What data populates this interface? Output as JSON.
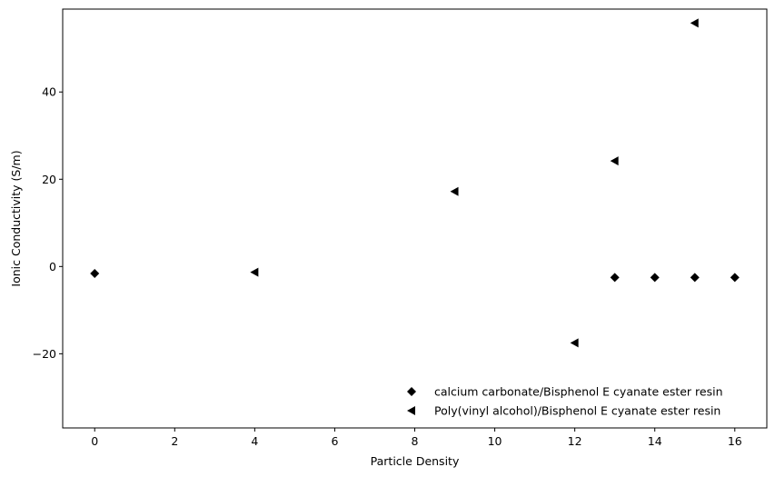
{
  "chart_data": {
    "type": "scatter",
    "xlabel": "Particle Density",
    "ylabel": "Ionic Conductivity (S/m)",
    "xlim": [
      -0.8,
      16.8
    ],
    "ylim": [
      -37,
      59
    ],
    "xticks": [
      0,
      2,
      4,
      6,
      8,
      10,
      12,
      14,
      16
    ],
    "yticks": [
      -20,
      0,
      20,
      40
    ],
    "xtick_labels": [
      "0",
      "2",
      "4",
      "6",
      "8",
      "10",
      "12",
      "14",
      "16"
    ],
    "ytick_labels": [
      "−20",
      "0",
      "20",
      "40"
    ],
    "grid": false,
    "legend_position": "lower-right",
    "series": [
      {
        "name": "calcium carbonate/Bisphenol E cyanate ester resin",
        "marker": "diamond",
        "color": "#000000",
        "x": [
          0,
          13,
          14,
          15,
          16
        ],
        "y": [
          -1.6,
          -2.5,
          -2.5,
          -2.5,
          -2.5
        ]
      },
      {
        "name": "Poly(vinyl alcohol)/Bisphenol E cyanate ester resin",
        "marker": "triangle-left",
        "color": "#000000",
        "x": [
          4,
          9,
          12,
          13,
          15
        ],
        "y": [
          -1.3,
          17.2,
          -17.5,
          24.2,
          55.8
        ]
      }
    ]
  }
}
